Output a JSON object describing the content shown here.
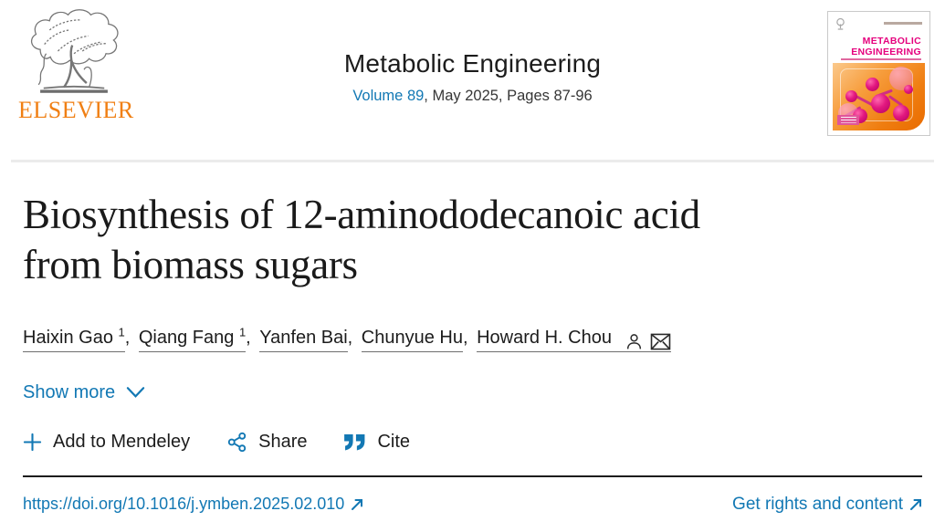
{
  "colors": {
    "link_blue": "#1278b4",
    "elsevier_orange": "#f07f13",
    "cover_magenta": "#e5007d",
    "text_dark": "#1c1c1c",
    "author_underline": "#6e6e6e"
  },
  "header": {
    "publisher_name": "ELSEVIER",
    "journal_title": "Metabolic Engineering",
    "volume_link": "Volume 89",
    "issue_text": ", May 2025, Pages 87-96",
    "cover": {
      "title_line1": "METABOLIC",
      "title_line2": "ENGINEERING"
    }
  },
  "article": {
    "title": "Biosynthesis of 12-aminododecanoic acid from biomass sugars",
    "title_line1": "Biosynthesis of 12-aminododecanoic acid",
    "title_line2": "from biomass sugars",
    "authors": [
      {
        "name": "Haixin Gao",
        "sup": "1"
      },
      {
        "name": "Qiang Fang",
        "sup": "1"
      },
      {
        "name": "Yanfen Bai"
      },
      {
        "name": "Chunyue Hu"
      },
      {
        "name": "Howard H. Chou",
        "has_icons": true
      }
    ],
    "show_more_label": "Show more"
  },
  "actions": {
    "add_to_mendeley": "Add to Mendeley",
    "share": "Share",
    "cite": "Cite"
  },
  "footer": {
    "doi": "https://doi.org/10.1016/j.ymben.2025.02.010",
    "rights": "Get rights and content"
  }
}
